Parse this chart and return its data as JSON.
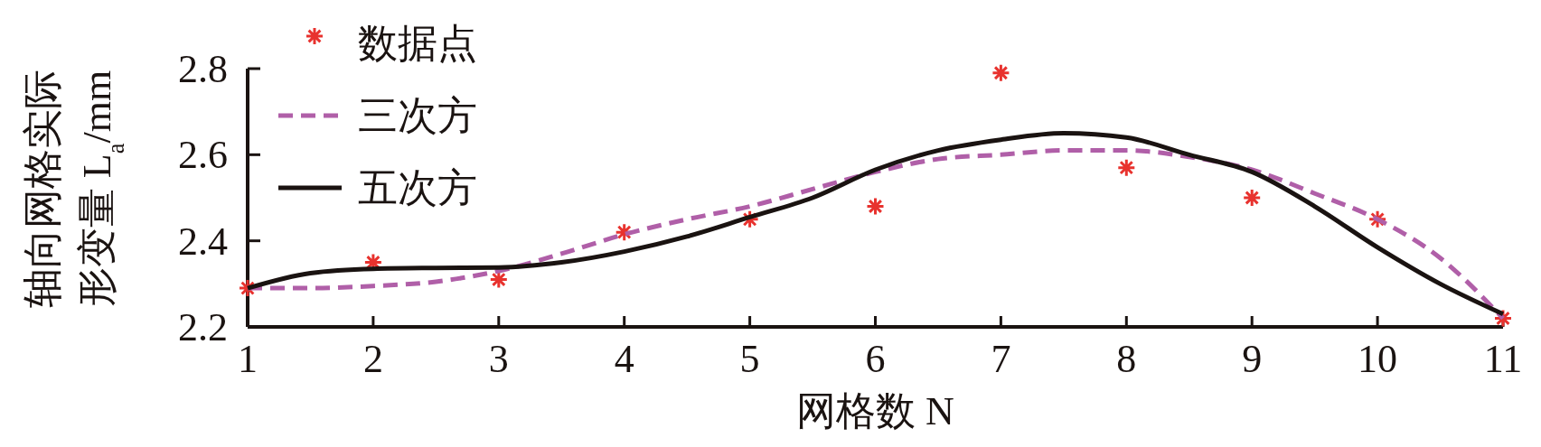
{
  "chart_data": {
    "type": "scatter",
    "xlabel": "网格数 N",
    "ylabel": "轴向网格实际形变量 L$_{a}$/mm",
    "xlim": [
      1,
      11
    ],
    "xticks": [
      1,
      2,
      3,
      4,
      5,
      6,
      7,
      8,
      9,
      10,
      11
    ],
    "ylim": [
      2.2,
      2.8
    ],
    "yticks": [
      2.2,
      2.4,
      2.6,
      2.8
    ],
    "legend": "top left",
    "grid": false,
    "series": [
      {
        "name": "数据点",
        "marker": "cross",
        "color": "#e8322e",
        "x": [
          1,
          2,
          3,
          4,
          5,
          6,
          7,
          8,
          9,
          10,
          11
        ],
        "values": [
          2.29,
          2.35,
          2.31,
          2.42,
          2.45,
          2.48,
          2.79,
          2.57,
          2.5,
          2.45,
          2.22
        ]
      },
      {
        "name": "三次方",
        "type": "line",
        "marker": "none",
        "line_style": "dashed",
        "color": "#b05fa8",
        "x": [
          1,
          1.5,
          2,
          2.5,
          3,
          3.5,
          4,
          4.5,
          5,
          5.5,
          6,
          6.5,
          7,
          7.5,
          8,
          8.5,
          9,
          9.5,
          10,
          10.5,
          11
        ],
        "values": [
          2.29,
          2.29,
          2.295,
          2.305,
          2.33,
          2.37,
          2.415,
          2.45,
          2.48,
          2.52,
          2.56,
          2.59,
          2.6,
          2.61,
          2.61,
          2.595,
          2.565,
          2.51,
          2.45,
          2.36,
          2.22
        ]
      },
      {
        "name": "五次方",
        "type": "line",
        "marker": "none",
        "line_style": "solid",
        "color": "#1a1311",
        "x": [
          1,
          1.5,
          2,
          2.5,
          3,
          3.5,
          4,
          4.5,
          5,
          5.5,
          6,
          6.5,
          7,
          7.5,
          8,
          8.5,
          9,
          9.5,
          10,
          10.5,
          11
        ],
        "values": [
          2.29,
          2.325,
          2.335,
          2.337,
          2.338,
          2.35,
          2.375,
          2.41,
          2.455,
          2.5,
          2.565,
          2.61,
          2.635,
          2.65,
          2.64,
          2.6,
          2.56,
          2.48,
          2.385,
          2.3,
          2.23
        ]
      }
    ]
  }
}
